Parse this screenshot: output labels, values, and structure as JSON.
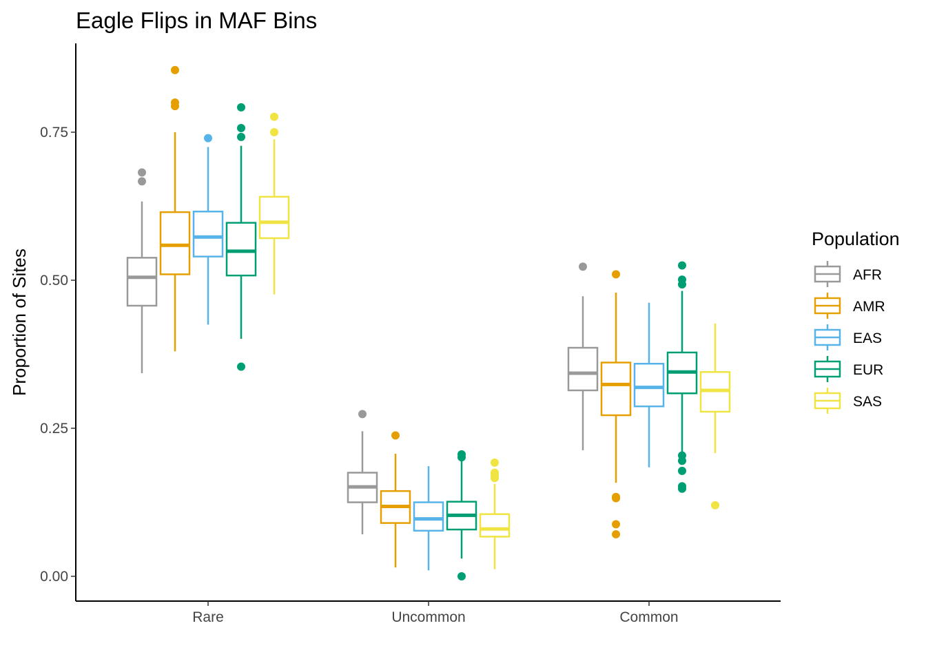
{
  "chart_data": {
    "type": "boxplot",
    "title": "Eagle Flips in MAF Bins",
    "xlabel": "",
    "ylabel": "Proportion of Sites",
    "ylim": [
      -0.04,
      0.9
    ],
    "yticks": [
      "0.00",
      "0.25",
      "0.50",
      "0.75"
    ],
    "ytick_values": [
      0,
      0.25,
      0.5,
      0.75
    ],
    "categories": [
      "Rare",
      "Uncommon",
      "Common"
    ],
    "grid": false,
    "legend": {
      "title": "Population",
      "position": "right"
    },
    "series": [
      {
        "name": "AFR",
        "color": "#999999",
        "boxes": [
          {
            "category": "Rare",
            "min": 0.343,
            "q1": 0.457,
            "median": 0.505,
            "q3": 0.538,
            "max": 0.633,
            "outliers": [
              0.667,
              0.682
            ]
          },
          {
            "category": "Uncommon",
            "min": 0.071,
            "q1": 0.125,
            "median": 0.151,
            "q3": 0.175,
            "max": 0.245,
            "outliers": [
              0.274
            ]
          },
          {
            "category": "Common",
            "min": 0.213,
            "q1": 0.314,
            "median": 0.343,
            "q3": 0.386,
            "max": 0.473,
            "outliers": [
              0.523
            ]
          }
        ]
      },
      {
        "name": "AMR",
        "color": "#E69F00",
        "boxes": [
          {
            "category": "Rare",
            "min": 0.38,
            "q1": 0.51,
            "median": 0.559,
            "q3": 0.615,
            "max": 0.75,
            "outliers": [
              0.794,
              0.8,
              0.855
            ]
          },
          {
            "category": "Uncommon",
            "min": 0.015,
            "q1": 0.09,
            "median": 0.118,
            "q3": 0.144,
            "max": 0.207,
            "outliers": [
              0.238
            ]
          },
          {
            "category": "Common",
            "min": 0.158,
            "q1": 0.272,
            "median": 0.324,
            "q3": 0.361,
            "max": 0.479,
            "outliers": [
              0.071,
              0.088,
              0.132,
              0.134,
              0.51
            ]
          }
        ]
      },
      {
        "name": "EAS",
        "color": "#56B4E9",
        "boxes": [
          {
            "category": "Rare",
            "min": 0.425,
            "q1": 0.54,
            "median": 0.573,
            "q3": 0.616,
            "max": 0.725,
            "outliers": [
              0.74
            ]
          },
          {
            "category": "Uncommon",
            "min": 0.01,
            "q1": 0.077,
            "median": 0.097,
            "q3": 0.125,
            "max": 0.186,
            "outliers": []
          },
          {
            "category": "Common",
            "min": 0.184,
            "q1": 0.287,
            "median": 0.319,
            "q3": 0.359,
            "max": 0.462,
            "outliers": []
          }
        ]
      },
      {
        "name": "EUR",
        "color": "#009E73",
        "boxes": [
          {
            "category": "Rare",
            "min": 0.401,
            "q1": 0.508,
            "median": 0.549,
            "q3": 0.597,
            "max": 0.727,
            "outliers": [
              0.354,
              0.742,
              0.757,
              0.792
            ]
          },
          {
            "category": "Uncommon",
            "min": 0.03,
            "q1": 0.079,
            "median": 0.103,
            "q3": 0.126,
            "max": 0.197,
            "outliers": [
              0.0,
              0.201,
              0.206
            ]
          },
          {
            "category": "Common",
            "min": 0.21,
            "q1": 0.309,
            "median": 0.345,
            "q3": 0.378,
            "max": 0.482,
            "outliers": [
              0.148,
              0.152,
              0.178,
              0.195,
              0.204,
              0.493,
              0.501,
              0.525
            ]
          }
        ]
      },
      {
        "name": "SAS",
        "color": "#F0E442",
        "boxes": [
          {
            "category": "Rare",
            "min": 0.476,
            "q1": 0.571,
            "median": 0.598,
            "q3": 0.641,
            "max": 0.738,
            "outliers": [
              0.75,
              0.776
            ]
          },
          {
            "category": "Uncommon",
            "min": 0.012,
            "q1": 0.067,
            "median": 0.08,
            "q3": 0.105,
            "max": 0.156,
            "outliers": [
              0.166,
              0.171,
              0.175,
              0.192
            ]
          },
          {
            "category": "Common",
            "min": 0.208,
            "q1": 0.278,
            "median": 0.314,
            "q3": 0.345,
            "max": 0.427,
            "outliers": [
              0.12
            ]
          }
        ]
      }
    ]
  }
}
